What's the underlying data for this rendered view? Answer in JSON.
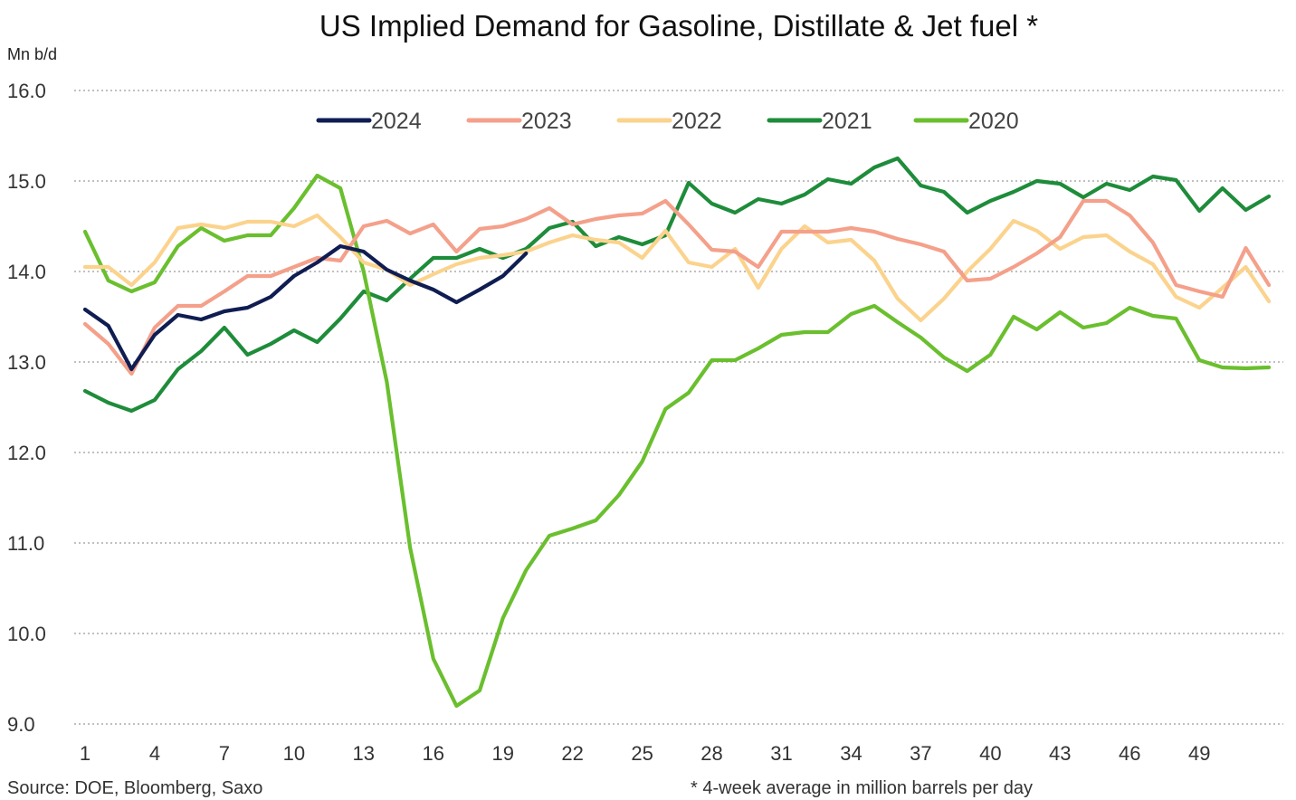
{
  "chart_data": {
    "type": "line",
    "title": "US Implied Demand for Gasoline, Distillate & Jet fuel *",
    "ylabel": "Mn b/d",
    "xlabel": "",
    "ylim": [
      9.0,
      16.0
    ],
    "xlim": [
      1,
      53
    ],
    "y_ticks": [
      "16.0",
      "15.0",
      "14.0",
      "13.0",
      "12.0",
      "11.0",
      "10.0",
      "9.0"
    ],
    "x_ticks": [
      "1",
      "4",
      "7",
      "10",
      "13",
      "16",
      "19",
      "22",
      "25",
      "28",
      "31",
      "34",
      "37",
      "40",
      "43",
      "46",
      "49"
    ],
    "grid": true,
    "legend": "top-center",
    "series": [
      {
        "name": "2024",
        "color": "#0f1d52",
        "x": [
          1,
          2,
          3,
          4,
          5,
          6,
          7,
          8,
          9,
          10,
          11,
          12,
          13,
          14,
          15,
          16,
          17,
          18,
          19,
          20
        ],
        "values": [
          13.58,
          13.4,
          12.92,
          13.3,
          13.52,
          13.47,
          13.56,
          13.6,
          13.72,
          13.95,
          14.1,
          14.28,
          14.22,
          14.02,
          13.9,
          13.8,
          13.66,
          13.8,
          13.95,
          14.2
        ]
      },
      {
        "name": "2023",
        "color": "#f4a08a",
        "x": [
          1,
          2,
          3,
          4,
          5,
          6,
          7,
          8,
          9,
          10,
          11,
          12,
          13,
          14,
          15,
          16,
          17,
          18,
          19,
          20,
          21,
          22,
          23,
          24,
          25,
          26,
          27,
          28,
          29,
          30,
          31,
          32,
          33,
          34,
          35,
          36,
          37,
          38,
          39,
          40,
          41,
          42,
          43,
          44,
          45,
          46,
          47,
          48,
          49,
          50,
          51,
          52
        ],
        "values": [
          13.42,
          13.2,
          12.87,
          13.38,
          13.62,
          13.62,
          13.78,
          13.95,
          13.95,
          14.05,
          14.15,
          14.12,
          14.5,
          14.56,
          14.42,
          14.52,
          14.22,
          14.47,
          14.5,
          14.58,
          14.7,
          14.52,
          14.58,
          14.62,
          14.64,
          14.78,
          14.52,
          14.24,
          14.22,
          14.05,
          14.44,
          14.44,
          14.44,
          14.48,
          14.44,
          14.36,
          14.3,
          14.22,
          13.9,
          13.92,
          14.05,
          14.2,
          14.38,
          14.78,
          14.78,
          14.62,
          14.32,
          13.85,
          13.78,
          13.72,
          14.26,
          13.85
        ]
      },
      {
        "name": "2022",
        "color": "#fbd38d",
        "x": [
          1,
          2,
          3,
          4,
          5,
          6,
          7,
          8,
          9,
          10,
          11,
          12,
          13,
          14,
          15,
          16,
          17,
          18,
          19,
          20,
          21,
          22,
          23,
          24,
          25,
          26,
          27,
          28,
          29,
          30,
          31,
          32,
          33,
          34,
          35,
          36,
          37,
          38,
          39,
          40,
          41,
          42,
          43,
          44,
          45,
          46,
          47,
          48,
          49,
          50,
          51,
          52
        ],
        "values": [
          14.05,
          14.05,
          13.85,
          14.1,
          14.48,
          14.52,
          14.48,
          14.55,
          14.55,
          14.5,
          14.62,
          14.38,
          14.1,
          14.02,
          13.85,
          13.97,
          14.08,
          14.15,
          14.18,
          14.22,
          14.32,
          14.4,
          14.35,
          14.32,
          14.15,
          14.45,
          14.1,
          14.05,
          14.25,
          13.82,
          14.25,
          14.5,
          14.32,
          14.35,
          14.12,
          13.7,
          13.46,
          13.7,
          14.0,
          14.25,
          14.56,
          14.45,
          14.25,
          14.38,
          14.4,
          14.22,
          14.08,
          13.72,
          13.6,
          13.82,
          14.05,
          13.67
        ]
      },
      {
        "name": "2021",
        "color": "#1e8c3a",
        "x": [
          1,
          2,
          3,
          4,
          5,
          6,
          7,
          8,
          9,
          10,
          11,
          12,
          13,
          14,
          15,
          16,
          17,
          18,
          19,
          20,
          21,
          22,
          23,
          24,
          25,
          26,
          27,
          28,
          29,
          30,
          31,
          32,
          33,
          34,
          35,
          36,
          37,
          38,
          39,
          40,
          41,
          42,
          43,
          44,
          45,
          46,
          47,
          48,
          49,
          50,
          51,
          52
        ],
        "values": [
          12.68,
          12.55,
          12.46,
          12.58,
          12.92,
          13.12,
          13.38,
          13.08,
          13.2,
          13.35,
          13.22,
          13.48,
          13.78,
          13.68,
          13.92,
          14.15,
          14.15,
          14.25,
          14.15,
          14.25,
          14.48,
          14.55,
          14.28,
          14.38,
          14.3,
          14.4,
          14.98,
          14.75,
          14.65,
          14.8,
          14.75,
          14.85,
          15.02,
          14.97,
          15.15,
          15.25,
          14.95,
          14.88,
          14.65,
          14.78,
          14.88,
          15.0,
          14.97,
          14.82,
          14.97,
          14.9,
          15.05,
          15.01,
          14.67,
          14.92,
          14.68,
          14.83
        ]
      },
      {
        "name": "2020",
        "color": "#6abf2e",
        "x": [
          1,
          2,
          3,
          4,
          5,
          6,
          7,
          8,
          9,
          10,
          11,
          12,
          13,
          14,
          15,
          16,
          17,
          18,
          19,
          20,
          21,
          22,
          23,
          24,
          25,
          26,
          27,
          28,
          29,
          30,
          31,
          32,
          33,
          34,
          35,
          36,
          37,
          38,
          39,
          40,
          41,
          42,
          43,
          44,
          45,
          46,
          47,
          48,
          49,
          50,
          51,
          52
        ],
        "values": [
          14.44,
          13.9,
          13.78,
          13.88,
          14.28,
          14.48,
          14.34,
          14.4,
          14.4,
          14.7,
          15.06,
          14.92,
          14.0,
          12.78,
          10.95,
          9.72,
          9.2,
          9.37,
          10.17,
          10.7,
          11.08,
          11.16,
          11.25,
          11.53,
          11.9,
          12.48,
          12.66,
          13.02,
          13.02,
          13.15,
          13.3,
          13.33,
          13.33,
          13.53,
          13.62,
          13.44,
          13.27,
          13.05,
          12.9,
          13.08,
          13.5,
          13.36,
          13.55,
          13.38,
          13.43,
          13.6,
          13.51,
          13.48,
          13.02,
          12.94,
          12.93,
          12.94
        ]
      }
    ]
  },
  "footer": {
    "source": "Source: DOE, Bloomberg, Saxo",
    "note": "* 4-week average in million barrels per day"
  }
}
